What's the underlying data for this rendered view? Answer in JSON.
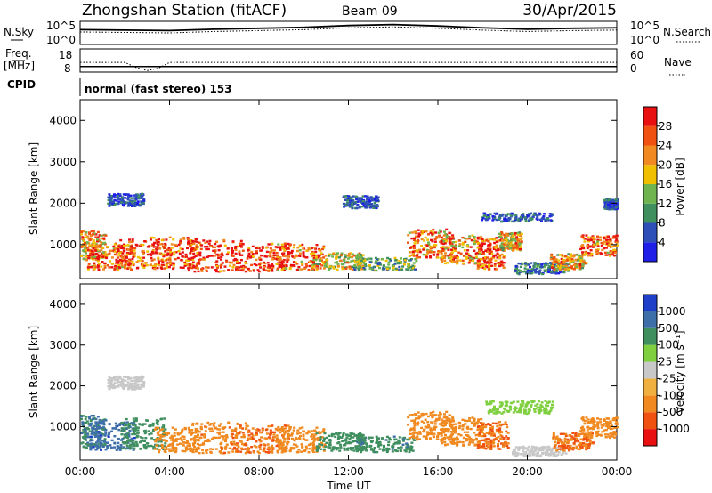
{
  "header": {
    "station": "Zhongshan Station (fitACF)",
    "beam": "Beam 09",
    "date": "30/Apr/2015"
  },
  "strips": {
    "nsky_label": "N.Sky",
    "nsearch_label": "N.Search",
    "noise_ticks_left": [
      "10^5",
      "10^0"
    ],
    "noise_ticks_right": [
      "10^5",
      "10^0"
    ],
    "freq_label_1": "Freq.",
    "freq_label_2": "[MHz]",
    "freq_ticks": [
      "18",
      "8"
    ],
    "nave_label": "Nave",
    "nave_ticks": [
      "60",
      "0"
    ],
    "cpid_label": "CPID",
    "cpid_value": "normal (fast stereo) 153"
  },
  "axes": {
    "ylabel": "Slant Range [km]",
    "xlabel": "Time UT",
    "yticks": [
      "1000",
      "2000",
      "3000",
      "4000"
    ],
    "xticks": [
      "00:00",
      "04:00",
      "08:00",
      "12:00",
      "16:00",
      "20:00",
      "00:00"
    ]
  },
  "colors": {
    "power": [
      "#1f1fe8",
      "#2f4fb8",
      "#3f8f5f",
      "#6fb44f",
      "#f0c000",
      "#f08a20",
      "#f05010",
      "#e81010"
    ],
    "velocity": [
      "#e81010",
      "#f05010",
      "#f08a20",
      "#f0b040",
      "#c8c8c8",
      "#7fcf3f",
      "#3f8f5f",
      "#3f6fa8",
      "#1f3fc8"
    ]
  },
  "chart_data": [
    {
      "type": "line",
      "title": "N.Sky / N.Search",
      "x": [
        "00:00",
        "02:00",
        "04:00",
        "06:00",
        "08:00",
        "10:00",
        "12:00",
        "14:00",
        "16:00",
        "18:00",
        "20:00",
        "22:00",
        "24:00"
      ],
      "series": [
        {
          "name": "N.Sky",
          "values": [
            3.2,
            3.1,
            3.0,
            3.3,
            3.5,
            3.7,
            4.1,
            4.3,
            4.0,
            3.6,
            3.3,
            3.5,
            3.6
          ]
        },
        {
          "name": "N.Search",
          "values": [
            2.7,
            2.6,
            2.5,
            2.8,
            3.0,
            3.2,
            3.6,
            3.8,
            3.5,
            3.1,
            2.8,
            3.0,
            3.1
          ]
        }
      ],
      "ylim": [
        0,
        5
      ],
      "scale": "log10"
    },
    {
      "type": "scatter",
      "title": "Freq. [MHz] / Nave",
      "x": [
        "00:00",
        "02:00",
        "02:30",
        "03:00",
        "03:30",
        "04:00",
        "08:00",
        "12:00",
        "16:00",
        "20:00",
        "24:00"
      ],
      "series": [
        {
          "name": "Freq.",
          "values": [
            10.4,
            10.4,
            10.4,
            10.4,
            10.4,
            10.4,
            10.4,
            10.4,
            10.4,
            10.4,
            10.4
          ]
        },
        {
          "name": "Nave",
          "values": [
            25,
            25,
            12,
            4,
            10,
            25,
            25,
            25,
            25,
            25,
            25
          ]
        }
      ],
      "ylim_freq": [
        8,
        18
      ],
      "ylim_nave": [
        0,
        60
      ]
    },
    {
      "type": "heatmap",
      "title": "Power",
      "xlabel": "Time UT",
      "ylabel": "Slant Range [km]",
      "colorbar_label": "Power [dB]",
      "colorbar_ticks": [
        "4",
        "8",
        "12",
        "16",
        "20",
        "24",
        "28"
      ],
      "xlim_hours": [
        0,
        24
      ],
      "ylim": [
        180,
        4500
      ],
      "blobs": [
        {
          "t": 0.5,
          "r": 1000,
          "dt": 0.6,
          "dr": 350,
          "v": 22
        },
        {
          "t": 1.3,
          "r": 720,
          "dt": 1.0,
          "dr": 300,
          "v": 26
        },
        {
          "t": 2.7,
          "r": 800,
          "dt": 1.2,
          "dr": 350,
          "v": 27
        },
        {
          "t": 4.2,
          "r": 820,
          "dt": 1.1,
          "dr": 380,
          "v": 28
        },
        {
          "t": 6.0,
          "r": 750,
          "dt": 1.3,
          "dr": 380,
          "v": 29
        },
        {
          "t": 8.0,
          "r": 720,
          "dt": 1.3,
          "dr": 350,
          "v": 29
        },
        {
          "t": 9.8,
          "r": 720,
          "dt": 1.1,
          "dr": 320,
          "v": 26
        },
        {
          "t": 11.5,
          "r": 620,
          "dt": 1.2,
          "dr": 200,
          "v": 18
        },
        {
          "t": 13.6,
          "r": 560,
          "dt": 1.4,
          "dr": 160,
          "v": 12
        },
        {
          "t": 15.6,
          "r": 1050,
          "dt": 1.0,
          "dr": 350,
          "v": 24
        },
        {
          "t": 17.0,
          "r": 900,
          "dt": 0.9,
          "dr": 350,
          "v": 22
        },
        {
          "t": 18.3,
          "r": 800,
          "dt": 0.6,
          "dr": 400,
          "v": 27
        },
        {
          "t": 19.2,
          "r": 1100,
          "dt": 0.5,
          "dr": 220,
          "v": 20
        },
        {
          "t": 20.6,
          "r": 450,
          "dt": 1.2,
          "dr": 140,
          "v": 8
        },
        {
          "t": 21.8,
          "r": 600,
          "dt": 0.8,
          "dr": 200,
          "v": 20
        },
        {
          "t": 23.2,
          "r": 1000,
          "dt": 0.9,
          "dr": 250,
          "v": 26
        },
        {
          "t": 2.0,
          "r": 2100,
          "dt": 0.8,
          "dr": 150,
          "v": 6
        },
        {
          "t": 12.5,
          "r": 2050,
          "dt": 0.8,
          "dr": 150,
          "v": 6
        },
        {
          "t": 19.5,
          "r": 1680,
          "dt": 1.6,
          "dr": 100,
          "v": 6
        },
        {
          "t": 23.7,
          "r": 2000,
          "dt": 0.3,
          "dr": 120,
          "v": 6
        }
      ]
    },
    {
      "type": "heatmap",
      "title": "Velocity",
      "xlabel": "Time UT",
      "ylabel": "Slant Range [km]",
      "colorbar_label": "Velocity [m s⁻¹]",
      "colorbar_ticks": [
        "-1000",
        "-500",
        "-100",
        "-25",
        "25",
        "100",
        "500",
        "1000"
      ],
      "xlim_hours": [
        0,
        24
      ],
      "ylim": [
        180,
        4500
      ],
      "blobs": [
        {
          "t": 0.5,
          "r": 900,
          "dt": 0.6,
          "dr": 400,
          "v": 500
        },
        {
          "t": 1.4,
          "r": 800,
          "dt": 1.0,
          "dr": 350,
          "v": 800
        },
        {
          "t": 2.8,
          "r": 850,
          "dt": 1.0,
          "dr": 380,
          "v": 300
        },
        {
          "t": 4.3,
          "r": 700,
          "dt": 1.0,
          "dr": 300,
          "v": -300
        },
        {
          "t": 6.2,
          "r": 750,
          "dt": 1.3,
          "dr": 380,
          "v": -400
        },
        {
          "t": 8.0,
          "r": 720,
          "dt": 1.3,
          "dr": 350,
          "v": -500
        },
        {
          "t": 9.8,
          "r": 700,
          "dt": 1.1,
          "dr": 320,
          "v": -350
        },
        {
          "t": 11.6,
          "r": 650,
          "dt": 1.1,
          "dr": 220,
          "v": 300
        },
        {
          "t": 13.6,
          "r": 600,
          "dt": 1.3,
          "dr": 200,
          "v": 400
        },
        {
          "t": 15.6,
          "r": 1050,
          "dt": 1.0,
          "dr": 350,
          "v": -200
        },
        {
          "t": 17.0,
          "r": 900,
          "dt": 0.9,
          "dr": 350,
          "v": -300
        },
        {
          "t": 18.4,
          "r": 800,
          "dt": 0.7,
          "dr": 350,
          "v": -500
        },
        {
          "t": 19.6,
          "r": 1500,
          "dt": 1.5,
          "dr": 160,
          "v": 60
        },
        {
          "t": 20.5,
          "r": 420,
          "dt": 1.2,
          "dr": 120,
          "v": 0
        },
        {
          "t": 22.0,
          "r": 650,
          "dt": 0.9,
          "dr": 220,
          "v": -500
        },
        {
          "t": 23.2,
          "r": 1000,
          "dt": 0.9,
          "dr": 250,
          "v": -250
        },
        {
          "t": 2.0,
          "r": 2100,
          "dt": 0.8,
          "dr": 160,
          "v": 0
        }
      ]
    }
  ]
}
